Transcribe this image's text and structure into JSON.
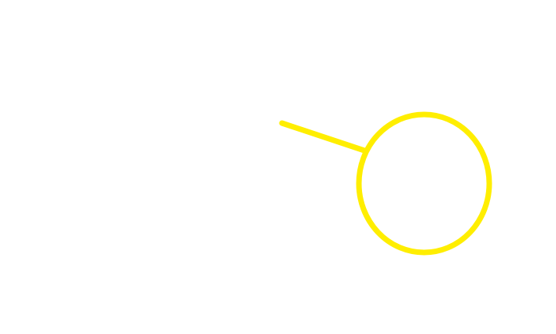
{
  "colors": {
    "background": "#ffffff",
    "stroke": "#ffee00"
  },
  "shapes": [
    {
      "kind": "line",
      "name": "yellow-line"
    },
    {
      "kind": "ellipse",
      "name": "yellow-ellipse"
    }
  ]
}
